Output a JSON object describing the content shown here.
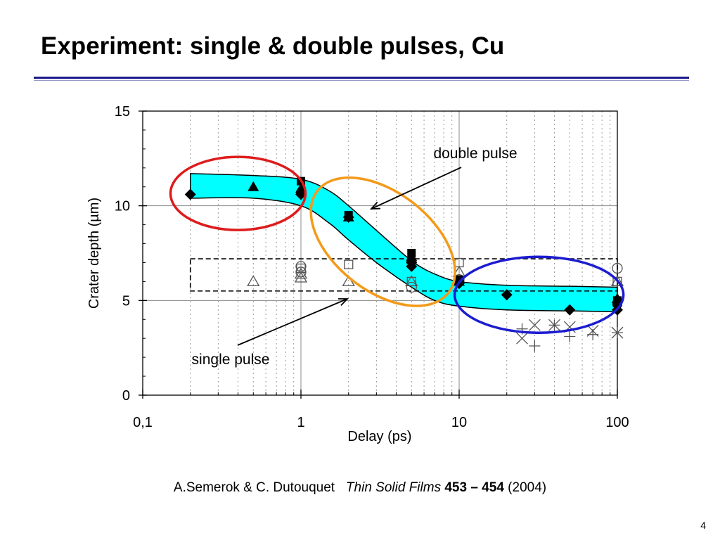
{
  "slide": {
    "title": "Experiment: single & double pulses, Cu",
    "page_number": "4",
    "accent_color": "#1a1a8c"
  },
  "citation": {
    "authors": "A.Semerok & C. Dutouquet",
    "journal": "Thin Solid Films",
    "volume": "453 – 454",
    "year": "(2004)"
  },
  "chart_data": {
    "type": "scatter",
    "xlabel": "Delay (ps)",
    "ylabel": "Crater depth (µm)",
    "x_scale": "log",
    "xlim": [
      0.1,
      100
    ],
    "ylim": [
      0,
      15
    ],
    "x_ticks": [
      {
        "value": 0.1,
        "label": "0,1"
      },
      {
        "value": 1,
        "label": "1"
      },
      {
        "value": 10,
        "label": "10"
      },
      {
        "value": 100,
        "label": "100"
      }
    ],
    "y_ticks": [
      {
        "value": 0,
        "label": "0"
      },
      {
        "value": 5,
        "label": "5"
      },
      {
        "value": 10,
        "label": "10"
      },
      {
        "value": 15,
        "label": "15"
      }
    ],
    "grid": true,
    "annotations": {
      "double_pulse": "double pulse",
      "single_pulse": "single pulse"
    },
    "highlight_colors": {
      "band": "#00ffff",
      "red_ellipse": "#dd1c1c",
      "orange_ellipse": "#f39a1a",
      "blue_ellipse": "#1c1cd0"
    },
    "double_pulse_band": {
      "x": [
        0.2,
        0.5,
        1,
        1.5,
        2,
        3,
        5,
        7,
        10,
        20,
        50,
        100
      ],
      "upper": [
        11.7,
        11.6,
        11.4,
        10.8,
        10.0,
        8.7,
        7.1,
        6.4,
        6.0,
        5.8,
        5.75,
        5.7
      ],
      "lower": [
        10.4,
        10.4,
        10.0,
        9.1,
        8.2,
        7.0,
        5.7,
        5.0,
        4.7,
        4.5,
        4.45,
        4.4
      ]
    },
    "single_pulse_box": {
      "x": [
        0.2,
        100
      ],
      "y": [
        5.5,
        7.2
      ]
    },
    "series": [
      {
        "marker": "diamond-filled",
        "points": [
          [
            0.2,
            10.6
          ],
          [
            1,
            10.6
          ],
          [
            2,
            9.4
          ],
          [
            5,
            7.0
          ],
          [
            5,
            6.8
          ],
          [
            10,
            5.9
          ],
          [
            20,
            5.3
          ],
          [
            50,
            4.5
          ],
          [
            100,
            4.5
          ],
          [
            100,
            4.9
          ]
        ]
      },
      {
        "marker": "triangle-filled",
        "points": [
          [
            0.5,
            11.0
          ],
          [
            1,
            10.9
          ],
          [
            2,
            9.4
          ],
          [
            5,
            7.3
          ],
          [
            10,
            6.0
          ],
          [
            100,
            5.1
          ]
        ]
      },
      {
        "marker": "square-filled",
        "points": [
          [
            1,
            11.3
          ],
          [
            2,
            9.5
          ],
          [
            5,
            7.5
          ],
          [
            10,
            6.1
          ],
          [
            100,
            5.0
          ]
        ]
      },
      {
        "marker": "circle-filled",
        "points": [
          [
            1,
            10.7
          ],
          [
            5,
            7.1
          ],
          [
            10,
            6.0
          ],
          [
            100,
            4.8
          ]
        ]
      },
      {
        "marker": "triangle-open",
        "points": [
          [
            0.5,
            6.0
          ],
          [
            1,
            6.4
          ],
          [
            1,
            6.2
          ],
          [
            2,
            6.0
          ],
          [
            5,
            6.0
          ],
          [
            10,
            6.5
          ],
          [
            100,
            6.0
          ]
        ]
      },
      {
        "marker": "circle-open",
        "points": [
          [
            1,
            6.8
          ],
          [
            1,
            6.5
          ],
          [
            5,
            5.7
          ],
          [
            10,
            6.1
          ],
          [
            100,
            6.7
          ]
        ]
      },
      {
        "marker": "square-open",
        "points": [
          [
            1,
            6.7
          ],
          [
            2,
            6.9
          ],
          [
            5,
            6.0
          ],
          [
            10,
            7.0
          ],
          [
            100,
            6.0
          ]
        ]
      },
      {
        "marker": "cross",
        "points": [
          [
            25,
            3.0
          ],
          [
            30,
            3.7
          ],
          [
            40,
            3.7
          ],
          [
            50,
            3.6
          ],
          [
            70,
            3.4
          ],
          [
            100,
            3.3
          ]
        ]
      },
      {
        "marker": "plus",
        "points": [
          [
            25,
            3.5
          ],
          [
            30,
            2.6
          ],
          [
            40,
            3.7
          ],
          [
            50,
            3.1
          ],
          [
            70,
            3.2
          ],
          [
            100,
            3.3
          ]
        ]
      }
    ]
  }
}
